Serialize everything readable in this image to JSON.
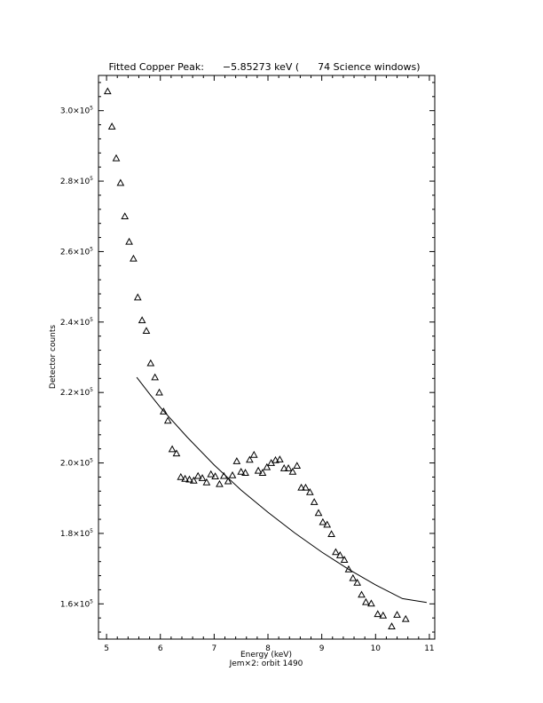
{
  "chart_data": {
    "type": "scatter",
    "title": "Fitted Copper Peak:      −5.85273 keV (      74 Science windows)",
    "xlabel": "Energy (keV)",
    "ylabel": "Detector counts",
    "footer": "Jem×2: orbit 1490",
    "xlim": [
      4.85,
      11.1
    ],
    "ylim": [
      150000,
      310000
    ],
    "x_ticks": [
      5,
      6,
      7,
      8,
      9,
      10,
      11
    ],
    "x_tick_labels": [
      "5",
      "6",
      "7",
      "8",
      "9",
      "10",
      "11"
    ],
    "y_ticks": [
      160000,
      180000,
      200000,
      220000,
      240000,
      260000,
      280000,
      300000
    ],
    "y_tick_labels": [
      {
        "mantissa": "1.6×10",
        "exp": "5"
      },
      {
        "mantissa": "1.8×10",
        "exp": "5"
      },
      {
        "mantissa": "2.0×10",
        "exp": "5"
      },
      {
        "mantissa": "2.2×10",
        "exp": "5"
      },
      {
        "mantissa": "2.4×10",
        "exp": "5"
      },
      {
        "mantissa": "2.6×10",
        "exp": "5"
      },
      {
        "mantissa": "2.8×10",
        "exp": "5"
      },
      {
        "mantissa": "3.0×10",
        "exp": "5"
      }
    ],
    "series": [
      {
        "marker": "triangle",
        "points": [
          [
            5.02,
            305500
          ],
          [
            5.1,
            295500
          ],
          [
            5.18,
            286500
          ],
          [
            5.26,
            279500
          ],
          [
            5.34,
            270000
          ],
          [
            5.42,
            262800
          ],
          [
            5.5,
            258000
          ],
          [
            5.58,
            247000
          ],
          [
            5.66,
            240500
          ],
          [
            5.74,
            237500
          ],
          [
            5.82,
            228300
          ],
          [
            5.9,
            224300
          ],
          [
            5.98,
            220000
          ],
          [
            6.06,
            214600
          ],
          [
            6.14,
            212000
          ],
          [
            6.22,
            203900
          ],
          [
            6.3,
            202700
          ],
          [
            6.38,
            196000
          ],
          [
            6.46,
            195500
          ],
          [
            6.54,
            195300
          ],
          [
            6.62,
            195000
          ],
          [
            6.7,
            196300
          ],
          [
            6.78,
            195700
          ],
          [
            6.86,
            194500
          ],
          [
            6.94,
            196800
          ],
          [
            7.02,
            196200
          ],
          [
            7.1,
            194000
          ],
          [
            7.18,
            196300
          ],
          [
            7.26,
            194800
          ],
          [
            7.34,
            196500
          ],
          [
            7.42,
            200500
          ],
          [
            7.5,
            197500
          ],
          [
            7.58,
            197200
          ],
          [
            7.66,
            200900
          ],
          [
            7.74,
            202300
          ],
          [
            7.82,
            197800
          ],
          [
            7.9,
            197200
          ],
          [
            7.98,
            198800
          ],
          [
            8.06,
            200000
          ],
          [
            8.14,
            200800
          ],
          [
            8.22,
            201000
          ],
          [
            8.3,
            198500
          ],
          [
            8.38,
            198500
          ],
          [
            8.46,
            197500
          ],
          [
            8.54,
            199200
          ],
          [
            8.62,
            193000
          ],
          [
            8.7,
            193000
          ],
          [
            8.78,
            191700
          ],
          [
            8.86,
            188900
          ],
          [
            8.94,
            185800
          ],
          [
            9.02,
            183200
          ],
          [
            9.1,
            182500
          ],
          [
            9.18,
            179800
          ],
          [
            9.26,
            174700
          ],
          [
            9.34,
            173800
          ],
          [
            9.42,
            172500
          ],
          [
            9.5,
            169800
          ],
          [
            9.58,
            167300
          ],
          [
            9.66,
            166000
          ],
          [
            9.74,
            162600
          ],
          [
            9.82,
            160500
          ],
          [
            9.92,
            160100
          ],
          [
            10.04,
            157100
          ],
          [
            10.14,
            156700
          ],
          [
            10.3,
            153600
          ],
          [
            10.4,
            156900
          ],
          [
            10.56,
            155700
          ]
        ]
      },
      {
        "type": "line",
        "points": [
          [
            5.56,
            224300
          ],
          [
            5.8,
            219600
          ],
          [
            6.0,
            215800
          ],
          [
            6.5,
            207300
          ],
          [
            7.0,
            199400
          ],
          [
            7.5,
            192300
          ],
          [
            8.0,
            186000
          ],
          [
            8.5,
            180100
          ],
          [
            9.0,
            174700
          ],
          [
            9.5,
            169800
          ],
          [
            10.0,
            165400
          ],
          [
            10.5,
            161500
          ],
          [
            10.95,
            160400
          ]
        ]
      }
    ]
  }
}
